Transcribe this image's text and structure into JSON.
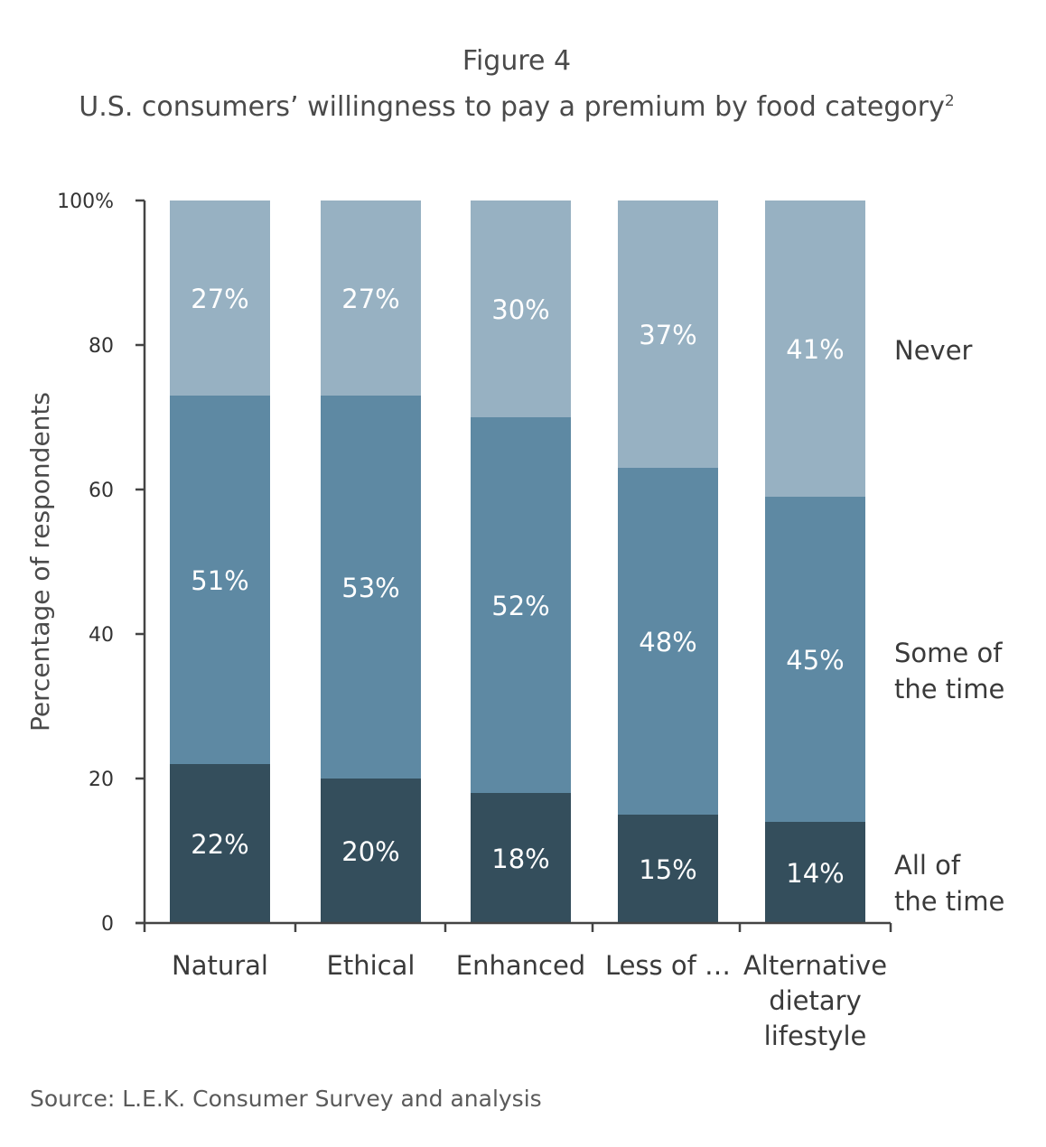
{
  "figure_label": "Figure 4",
  "title": "U.S. consumers’ willingness to pay a premium by food category",
  "title_superscript": "2",
  "source": "Source: L.E.K. Consumer Survey and analysis",
  "colors": {
    "all_of_the_time": "#344e5c",
    "some_of_the_time": "#5e89a3",
    "never": "#97b1c2",
    "axis": "#444444"
  },
  "chart_data": {
    "type": "bar",
    "stacked": true,
    "categories": [
      [
        "Natural"
      ],
      [
        "Ethical"
      ],
      [
        "Enhanced"
      ],
      [
        "Less of …"
      ],
      [
        "Alternative",
        "dietary",
        "lifestyle"
      ]
    ],
    "series": [
      {
        "name": [
          "All of",
          "the time"
        ],
        "values": [
          22,
          20,
          18,
          15,
          14
        ],
        "labels": [
          "22%",
          "20%",
          "18%",
          "15%",
          "14%"
        ]
      },
      {
        "name": [
          "Some of",
          "the time"
        ],
        "values": [
          51,
          53,
          52,
          48,
          45
        ],
        "labels": [
          "51%",
          "53%",
          "52%",
          "48%",
          "45%"
        ]
      },
      {
        "name": [
          "Never"
        ],
        "values": [
          27,
          27,
          30,
          37,
          41
        ],
        "labels": [
          "27%",
          "27%",
          "30%",
          "37%",
          "41%"
        ]
      }
    ],
    "ylabel": "Percentage of respondents",
    "ylim": [
      0,
      100
    ],
    "yticks": [
      0,
      20,
      40,
      60,
      80,
      100
    ],
    "ytick_labels": [
      "0",
      "20",
      "40",
      "60",
      "80",
      "100%"
    ],
    "legend_placement": "right, aligned with segments",
    "grid": false
  }
}
